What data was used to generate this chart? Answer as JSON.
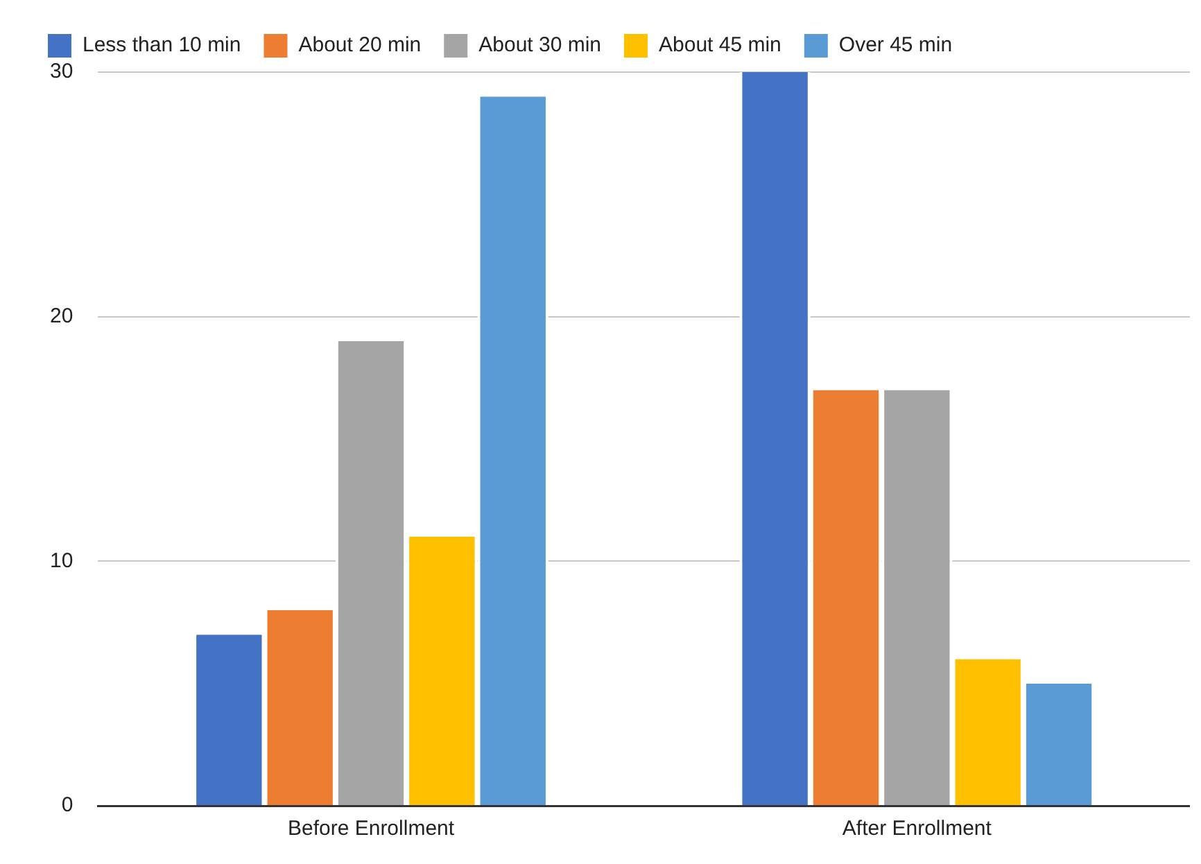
{
  "chart_data": {
    "type": "bar",
    "categories": [
      "Before Enrollment",
      "After Enrollment"
    ],
    "series": [
      {
        "name": "Less than 10 min",
        "color": "#4472c4",
        "values": [
          7,
          30
        ]
      },
      {
        "name": "About 20 min",
        "color": "#ed7d31",
        "values": [
          8,
          17
        ]
      },
      {
        "name": "About 30 min",
        "color": "#a5a5a5",
        "values": [
          19,
          17
        ]
      },
      {
        "name": "About 45 min",
        "color": "#ffc000",
        "values": [
          11,
          6
        ]
      },
      {
        "name": "Over 45 min",
        "color": "#5b9bd5",
        "values": [
          29,
          5
        ]
      }
    ],
    "ylim": [
      0,
      30
    ],
    "yticks": [
      0,
      10,
      20,
      30
    ],
    "grid": "y",
    "legend": "top"
  }
}
